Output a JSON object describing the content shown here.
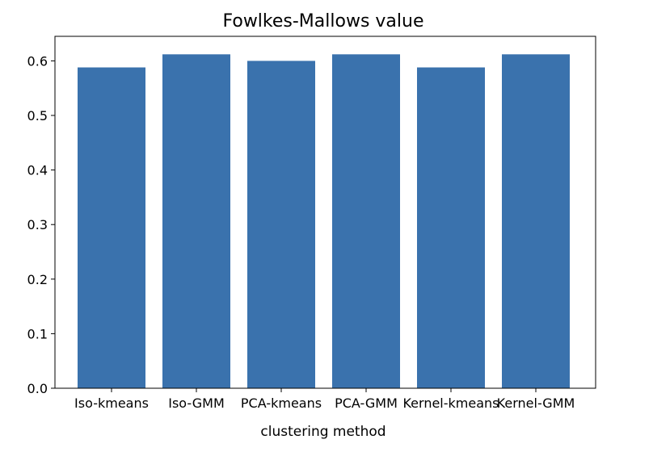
{
  "chart_data": {
    "type": "bar",
    "title": "Fowlkes-Mallows value",
    "xlabel": "clustering method",
    "ylabel": "",
    "categories": [
      "Iso-kmeans",
      "Iso-GMM",
      "PCA-kmeans",
      "PCA-GMM",
      "Kernel-kmeans",
      "Kernel-GMM"
    ],
    "values": [
      0.588,
      0.612,
      0.6,
      0.612,
      0.588,
      0.612
    ],
    "ylim": [
      0,
      0.645
    ],
    "yticks": [
      0.0,
      0.1,
      0.2,
      0.3,
      0.4,
      0.5,
      0.6
    ],
    "ytick_labels": [
      "0.0",
      "0.1",
      "0.2",
      "0.3",
      "0.4",
      "0.5",
      "0.6"
    ],
    "bar_color": "#3a72ad",
    "grid": false,
    "legend": "none"
  }
}
